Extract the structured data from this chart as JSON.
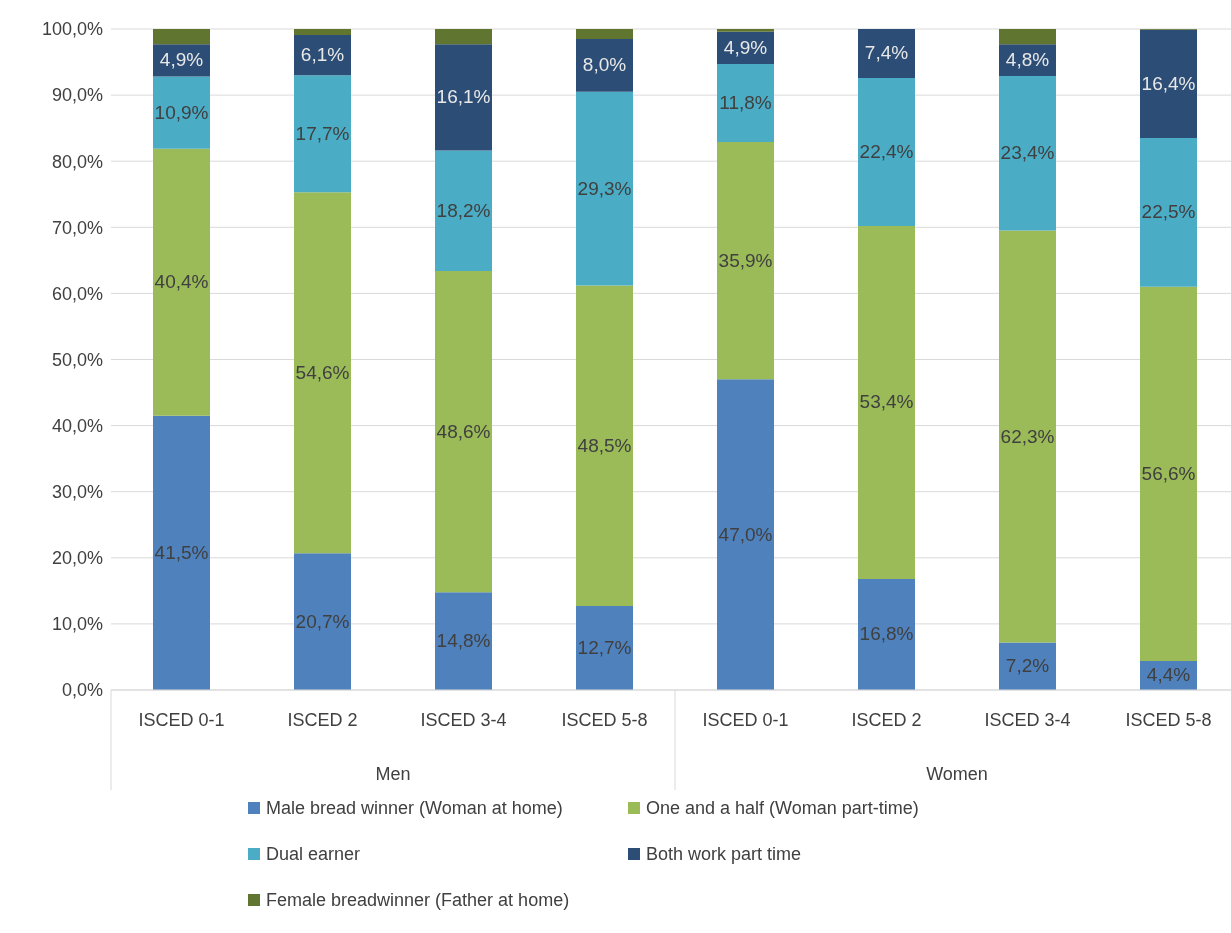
{
  "chart_data": {
    "type": "bar",
    "stacked": true,
    "categories": [
      "ISCED 0-1",
      "ISCED 2",
      "ISCED 3-4",
      "ISCED 5-8",
      "ISCED 0-1",
      "ISCED 2",
      "ISCED 3-4",
      "ISCED 5-8"
    ],
    "annotations": [
      "Men",
      "Women"
    ],
    "series": [
      {
        "name": "Male bread winner (Woman at home)",
        "color": "#4f81bd",
        "values": [
          41.5,
          20.7,
          14.8,
          12.7,
          47.0,
          16.8,
          7.2,
          4.4
        ],
        "value_labels": [
          "41,5%",
          "20,7%",
          "14,8%",
          "12,7%",
          "47,0%",
          "16,8%",
          "7,2%",
          "4,4%"
        ]
      },
      {
        "name": "One and a half (Woman part-time)",
        "color": "#9bbb59",
        "values": [
          40.4,
          54.6,
          48.6,
          48.5,
          35.9,
          53.4,
          62.3,
          56.6
        ],
        "value_labels": [
          "40,4%",
          "54,6%",
          "48,6%",
          "48,5%",
          "35,9%",
          "53,4%",
          "62,3%",
          "56,6%"
        ]
      },
      {
        "name": "Dual earner",
        "color": "#4bacc6",
        "values": [
          10.9,
          17.7,
          18.2,
          29.3,
          11.8,
          22.4,
          23.4,
          22.5
        ],
        "value_labels": [
          "10,9%",
          "17,7%",
          "18,2%",
          "29,3%",
          "11,8%",
          "22,4%",
          "23,4%",
          "22,5%"
        ]
      },
      {
        "name": "Both work part time",
        "color": "#2c4d75",
        "values": [
          4.9,
          6.1,
          16.1,
          8.0,
          4.9,
          7.4,
          4.8,
          16.4
        ],
        "value_labels": [
          "4,9%",
          "6,1%",
          "16,1%",
          "8,0%",
          "4,9%",
          "7,4%",
          "4,8%",
          "16,4%"
        ]
      },
      {
        "name": "Female breadwinner (Father at home)",
        "color": "#5f7530",
        "values": [
          2.3,
          0.9,
          2.3,
          1.5,
          0.4,
          0.0,
          2.3,
          0.1
        ]
      }
    ],
    "ylim": [
      0,
      100
    ],
    "yticks": [
      {
        "value": 0,
        "label": "0,0%"
      },
      {
        "value": 10,
        "label": "10,0%"
      },
      {
        "value": 20,
        "label": "20,0%"
      },
      {
        "value": 30,
        "label": "30,0%"
      },
      {
        "value": 40,
        "label": "40,0%"
      },
      {
        "value": 50,
        "label": "50,0%"
      },
      {
        "value": 60,
        "label": "60,0%"
      },
      {
        "value": 70,
        "label": "70,0%"
      },
      {
        "value": 80,
        "label": "80,0%"
      },
      {
        "value": 90,
        "label": "90,0%"
      },
      {
        "value": 100,
        "label": "100,0%"
      }
    ],
    "grid": "y",
    "legend": "bottom"
  }
}
